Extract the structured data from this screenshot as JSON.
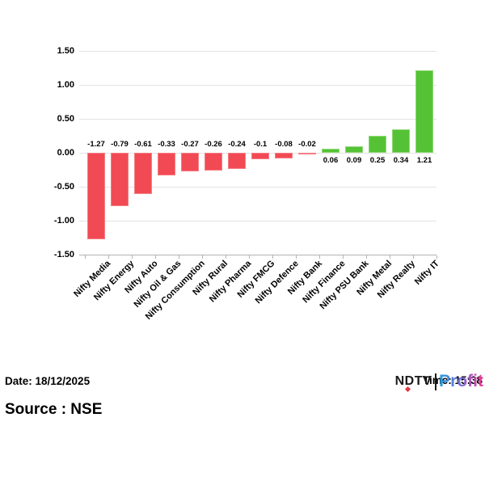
{
  "chart_data": {
    "type": "bar",
    "title": "",
    "xlabel": "",
    "ylabel": "",
    "categories": [
      "Nifty Media",
      "Nifty Energy",
      "Nifty Auto",
      "Nifty Oil & Gas",
      "Nifty Consumption",
      "Nifty Rural",
      "Nifty Pharma",
      "Nifty FMCG",
      "Nifty Defence",
      "Nifty Bank",
      "Nifty Finance",
      "Nifty PSU Bank",
      "Nifty Metal",
      "Nifty Realty",
      "Nifty IT"
    ],
    "values": [
      -1.27,
      -0.79,
      -0.61,
      -0.33,
      -0.27,
      -0.26,
      -0.24,
      -0.1,
      -0.08,
      -0.02,
      0.06,
      0.09,
      0.25,
      0.34,
      1.21
    ],
    "value_labels": [
      "-1.27",
      "-0.79",
      "-0.61",
      "-0.33",
      "-0.27",
      "-0.26",
      "-0.24",
      "-0.1",
      "-0.08",
      "-0.02",
      "0.06",
      "0.09",
      "0.25",
      "0.34",
      "1.21"
    ],
    "yticks": [
      "1.50",
      "1.00",
      "0.50",
      "0.00",
      "-0.50",
      "-1.00",
      "-1.50"
    ],
    "ylim": [
      -1.5,
      1.5
    ],
    "grid": "horizontal",
    "legend": "none",
    "negative_color": "#f24a54",
    "positive_color": "#55c236",
    "xtick_rotation_deg": 45
  },
  "footer": {
    "date": "Date: 18/12/2025",
    "source": "Source : NSE",
    "time": "Time: 15:38",
    "logo_ndtv": "NDTV",
    "logo_profit": "Profit"
  }
}
